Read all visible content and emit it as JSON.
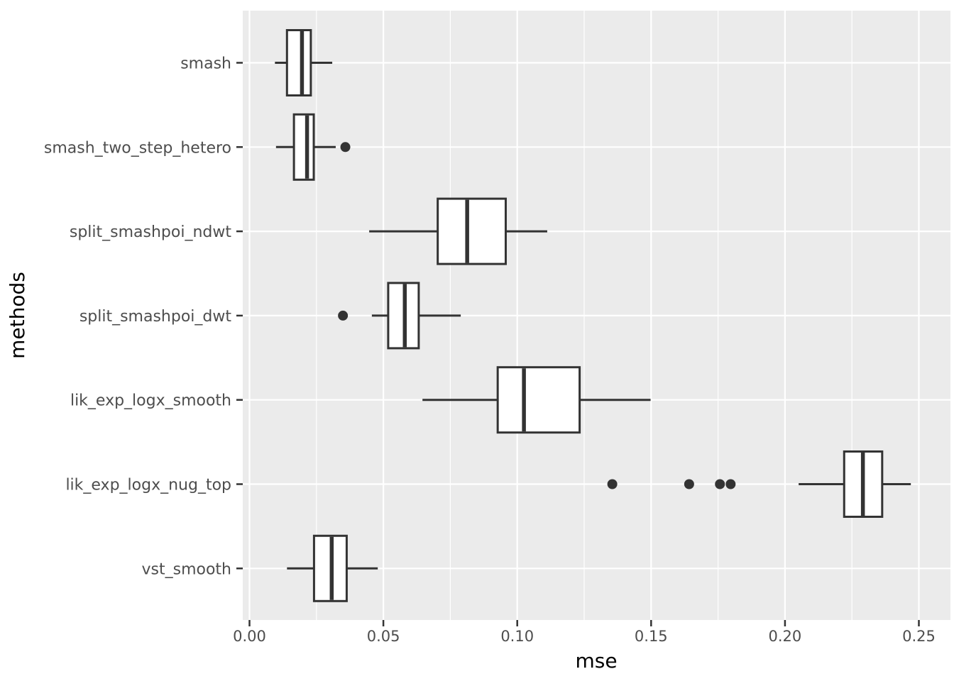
{
  "chart_data": {
    "type": "boxplot",
    "orientation": "horizontal",
    "title": "",
    "xlabel": "mse",
    "ylabel": "methods",
    "xlim": [
      0,
      0.25
    ],
    "x_ticks": [
      0,
      0.05,
      0.1,
      0.15,
      0.2,
      0.25
    ],
    "x_tick_labels": [
      "0.00",
      "0.05",
      "0.10",
      "0.15",
      "0.20",
      "0.25"
    ],
    "legend": "none",
    "grid": {
      "major_vertical": true,
      "minor_vertical": true,
      "major_horizontal": true
    },
    "categories_top_to_bottom": [
      "smash",
      "smash_two_step_hetero",
      "split_smashpoi_ndwt",
      "split_smashpoi_dwt",
      "lik_exp_logx_smooth",
      "lik_exp_logx_nug_top",
      "vst_smooth"
    ],
    "series": [
      {
        "method": "smash",
        "whisker_low": 0.0095,
        "q1": 0.014,
        "median": 0.0196,
        "q3": 0.0229,
        "whisker_high": 0.0309,
        "outliers": []
      },
      {
        "method": "smash_two_step_hetero",
        "whisker_low": 0.0099,
        "q1": 0.0166,
        "median": 0.0215,
        "q3": 0.024,
        "whisker_high": 0.0322,
        "outliers": [
          0.0358
        ]
      },
      {
        "method": "split_smashpoi_ndwt",
        "whisker_low": 0.0447,
        "q1": 0.0703,
        "median": 0.0813,
        "q3": 0.0957,
        "whisker_high": 0.1112,
        "outliers": []
      },
      {
        "method": "split_smashpoi_dwt",
        "whisker_low": 0.0457,
        "q1": 0.0518,
        "median": 0.058,
        "q3": 0.0632,
        "whisker_high": 0.0789,
        "outliers": [
          0.0349
        ]
      },
      {
        "method": "lik_exp_logx_smooth",
        "whisker_low": 0.0646,
        "q1": 0.0927,
        "median": 0.1025,
        "q3": 0.1233,
        "whisker_high": 0.1498,
        "outliers": []
      },
      {
        "method": "lik_exp_logx_nug_top",
        "whisker_low": 0.2051,
        "q1": 0.2221,
        "median": 0.2291,
        "q3": 0.2363,
        "whisker_high": 0.247,
        "outliers": [
          0.1355,
          0.1642,
          0.1757,
          0.1797
        ]
      },
      {
        "method": "vst_smooth",
        "whisker_low": 0.014,
        "q1": 0.0241,
        "median": 0.0307,
        "q3": 0.0363,
        "whisker_high": 0.0479,
        "outliers": []
      }
    ],
    "colors": {
      "panel_bg": "#EBEBEB",
      "grid": "#FFFFFF",
      "box_stroke": "#333333",
      "box_fill": "#FFFFFF",
      "outlier": "#333333",
      "tick_mark": "#333333",
      "tick_label": "#4D4D4D",
      "axis_title": "#000000",
      "page_bg": "#FFFFFF"
    }
  }
}
